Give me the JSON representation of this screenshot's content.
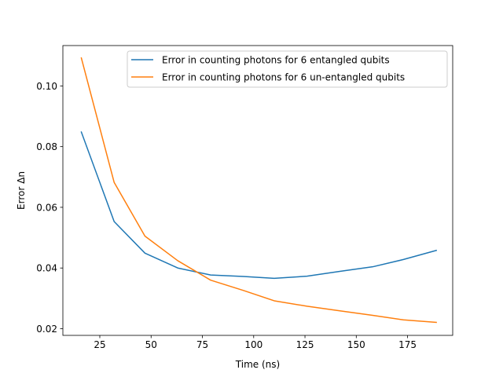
{
  "chart_data": {
    "type": "line",
    "title": "",
    "xlabel": "Time (ns)",
    "ylabel": "Error Δn",
    "xlim": [
      7,
      197
    ],
    "ylim": [
      0.0178,
      0.1133
    ],
    "xticks": [
      25,
      50,
      75,
      100,
      125,
      150,
      175
    ],
    "yticks": [
      0.02,
      0.04,
      0.06,
      0.08,
      0.1
    ],
    "xtick_labels": [
      "25",
      "50",
      "75",
      "100",
      "125",
      "150",
      "175"
    ],
    "ytick_labels": [
      "0.02",
      "0.04",
      "0.06",
      "0.08",
      "0.10"
    ],
    "grid": false,
    "legend_position": "top-right",
    "series": [
      {
        "name": "Error in counting photons for 6 entangled qubits",
        "color": "#1f77b4",
        "x": [
          16,
          32,
          47,
          63,
          79,
          95,
          110,
          126,
          142,
          158,
          173,
          189
        ],
        "y": [
          0.0848,
          0.0553,
          0.0449,
          0.04,
          0.0377,
          0.0372,
          0.0366,
          0.0373,
          0.0389,
          0.0404,
          0.0428,
          0.0458
        ]
      },
      {
        "name": "Error in counting photons for 6 un-entangled qubits",
        "color": "#ff7f0e",
        "x": [
          16,
          32,
          47,
          63,
          79,
          95,
          110,
          126,
          142,
          158,
          173,
          189
        ],
        "y": [
          0.1092,
          0.0682,
          0.0505,
          0.0424,
          0.036,
          0.0326,
          0.0292,
          0.0274,
          0.0259,
          0.0244,
          0.0229,
          0.0221
        ]
      }
    ]
  }
}
